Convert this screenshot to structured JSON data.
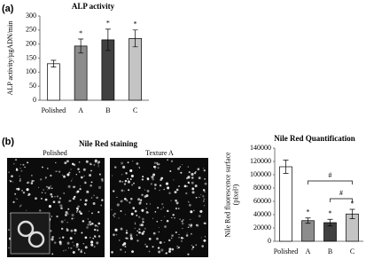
{
  "figure": {
    "panel_labels": [
      "(a)",
      "(b)"
    ],
    "staining": {
      "title": "Nile Red staining",
      "images": [
        "Polished",
        "Texture A"
      ]
    }
  },
  "chart_data": [
    {
      "type": "bar",
      "title": "ALP activity",
      "ylabel": [
        "ALP activity/µgADN/min"
      ],
      "categories": [
        "Polished",
        "A",
        "B",
        "C"
      ],
      "values": [
        130,
        193,
        215,
        220
      ],
      "errors": [
        12,
        25,
        38,
        30
      ],
      "colors": [
        "#ffffff",
        "#8c8c8c",
        "#404040",
        "#c4c4c4"
      ],
      "markers": [
        null,
        "*",
        "*",
        "*"
      ],
      "ylim": [
        0,
        300
      ],
      "yticks": [
        0,
        50,
        100,
        150,
        200,
        250,
        300
      ]
    },
    {
      "type": "bar",
      "title": "Nile Red Quantification",
      "ylabel": [
        "Nile Red fluorescence surface",
        "(pixel²)"
      ],
      "categories": [
        "Polished",
        "A",
        "B",
        "C"
      ],
      "values": [
        112000,
        31000,
        28000,
        41000
      ],
      "errors": [
        10000,
        4000,
        5000,
        7000
      ],
      "colors": [
        "#ffffff",
        "#8c8c8c",
        "#404040",
        "#c4c4c4"
      ],
      "markers": [
        null,
        "*",
        "*",
        "*"
      ],
      "brackets": [
        {
          "between": [
            "A",
            "C"
          ],
          "label": "#"
        },
        {
          "between": [
            "B",
            "C"
          ],
          "label": "#"
        }
      ],
      "ylim": [
        0,
        140000
      ],
      "yticks": [
        0,
        20000,
        40000,
        60000,
        80000,
        100000,
        120000,
        140000
      ]
    }
  ]
}
